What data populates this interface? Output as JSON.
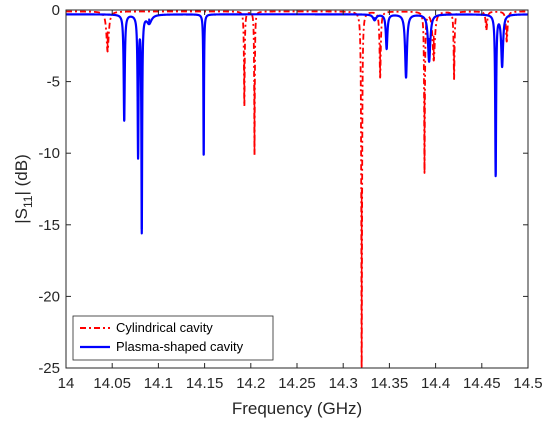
{
  "chart_data": {
    "type": "line",
    "xlabel": "Frequency (GHz)",
    "ylabel_main": "|S",
    "ylabel_sub": "11",
    "ylabel_tail": "| (dB)",
    "xlim": [
      14,
      14.5
    ],
    "ylim": [
      -25,
      0
    ],
    "xticks": [
      "14",
      "14.05",
      "14.1",
      "14.15",
      "14.2",
      "14.25",
      "14.3",
      "14.35",
      "14.4",
      "14.45",
      "14.5"
    ],
    "yticks": [
      "0",
      "-5",
      "-10",
      "-15",
      "-20",
      "-25"
    ],
    "grid": false,
    "legend_position": "bottom-left",
    "series": [
      {
        "name": "Cylindrical cavity",
        "color": "#ff0000",
        "style": "dash-dot",
        "baseline": -0.1,
        "resonances": [
          {
            "f": 14.045,
            "depth": -2.9,
            "width": 0.0015
          },
          {
            "f": 14.193,
            "depth": -6.7,
            "width": 0.0005
          },
          {
            "f": 14.204,
            "depth": -10.1,
            "width": 0.0004
          },
          {
            "f": 14.32,
            "depth": -25.0,
            "width": 0.0005
          },
          {
            "f": 14.34,
            "depth": -4.7,
            "width": 0.0008
          },
          {
            "f": 14.388,
            "depth": -11.3,
            "width": 0.0005
          },
          {
            "f": 14.398,
            "depth": -3.5,
            "width": 0.0015
          },
          {
            "f": 14.42,
            "depth": -4.8,
            "width": 0.0006
          },
          {
            "f": 14.455,
            "depth": -1.4,
            "width": 0.001
          },
          {
            "f": 14.477,
            "depth": -2.2,
            "width": 0.001
          }
        ]
      },
      {
        "name": "Plasma-shaped cavity",
        "color": "#0000ff",
        "style": "solid",
        "baseline": -0.3,
        "resonances": [
          {
            "f": 14.063,
            "depth": -7.7,
            "width": 0.0007
          },
          {
            "f": 14.078,
            "depth": -10.1,
            "width": 0.0006
          },
          {
            "f": 14.082,
            "depth": -15.3,
            "width": 0.0005
          },
          {
            "f": 14.09,
            "depth": -0.9,
            "width": 0.003
          },
          {
            "f": 14.149,
            "depth": -10.1,
            "width": 0.0004
          },
          {
            "f": 14.334,
            "depth": -0.7,
            "width": 0.002
          },
          {
            "f": 14.347,
            "depth": -2.7,
            "width": 0.001
          },
          {
            "f": 14.368,
            "depth": -4.7,
            "width": 0.0012
          },
          {
            "f": 14.393,
            "depth": -3.6,
            "width": 0.0015
          },
          {
            "f": 14.465,
            "depth": -11.5,
            "width": 0.0006
          },
          {
            "f": 14.472,
            "depth": -3.9,
            "width": 0.0012
          }
        ]
      }
    ]
  }
}
